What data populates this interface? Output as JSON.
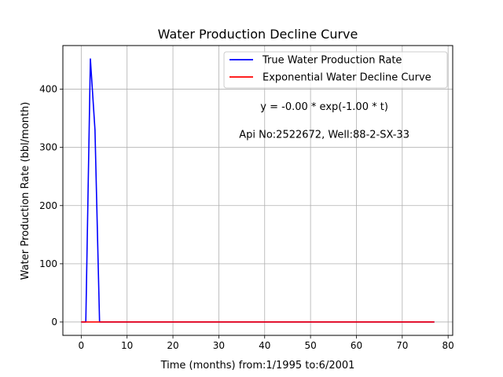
{
  "chart_data": {
    "type": "line",
    "title": "Water Production Decline Curve",
    "xlabel": "Time (months) from:1/1995 to:6/2001",
    "ylabel": "Water Production Rate (bbl/month)",
    "xlim": [
      -4,
      81
    ],
    "ylim": [
      -23,
      475
    ],
    "xticks": [
      0,
      10,
      20,
      30,
      40,
      50,
      60,
      70,
      80
    ],
    "yticks": [
      0,
      100,
      200,
      300,
      400
    ],
    "grid": true,
    "legend_position": "top-right",
    "series": [
      {
        "name": "True Water Production Rate",
        "color": "#0000ff",
        "x": [
          0,
          1,
          2,
          3,
          4,
          5,
          6,
          7,
          8,
          9,
          10,
          11,
          12,
          13,
          14,
          15,
          16,
          17,
          18,
          19,
          20,
          21,
          22,
          23,
          24,
          25,
          26,
          27,
          28,
          29,
          30,
          31,
          32,
          33,
          34,
          35,
          36,
          37,
          38,
          39,
          40,
          41,
          42,
          43,
          44,
          45,
          46,
          47,
          48,
          49,
          50,
          51,
          52,
          53,
          54,
          55,
          56,
          57,
          58,
          59,
          60,
          61,
          62,
          63,
          64,
          65,
          66,
          67,
          68,
          69,
          70,
          71,
          72,
          73,
          74,
          75,
          76,
          77
        ],
        "y": [
          0,
          0,
          452,
          330,
          0,
          0,
          0,
          0,
          0,
          0,
          0,
          0,
          0,
          0,
          0,
          0,
          0,
          0,
          0,
          0,
          0,
          0,
          0,
          0,
          0,
          0,
          0,
          0,
          0,
          0,
          0,
          0,
          0,
          0,
          0,
          0,
          0,
          0,
          0,
          0,
          0,
          0,
          0,
          0,
          0,
          0,
          0,
          0,
          0,
          0,
          0,
          0,
          0,
          0,
          0,
          0,
          0,
          0,
          0,
          0,
          0,
          0,
          0,
          0,
          0,
          0,
          0,
          0,
          0,
          0,
          0,
          0,
          0,
          0,
          0,
          0,
          0,
          0
        ]
      },
      {
        "name": "Exponential Water Decline Curve",
        "color": "#ff0000",
        "x": [
          0,
          77
        ],
        "y": [
          0,
          0
        ]
      }
    ],
    "annotations": [
      {
        "text": "y = -0.00 * exp(-1.00 * t)",
        "x": 53,
        "y": 370
      },
      {
        "text": "Api No:2522672, Well:88-2-SX-33",
        "x": 53,
        "y": 322
      }
    ]
  }
}
